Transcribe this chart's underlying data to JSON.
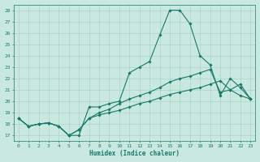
{
  "xlabel": "Humidex (Indice chaleur)",
  "ylabel": "",
  "xlim": [
    -0.5,
    23.5
  ],
  "ylim": [
    16.5,
    28.5
  ],
  "yticks": [
    17,
    18,
    19,
    20,
    21,
    22,
    23,
    24,
    25,
    26,
    27,
    28
  ],
  "xticks": [
    0,
    1,
    2,
    3,
    4,
    5,
    6,
    7,
    8,
    9,
    10,
    11,
    12,
    13,
    14,
    15,
    16,
    17,
    18,
    19,
    20,
    21,
    22,
    23
  ],
  "bg_color": "#c8e8e0",
  "line_color": "#1a7a6a",
  "grid_color": "#aad4ca",
  "series": [
    {
      "x": [
        0,
        1,
        2,
        3,
        4,
        5,
        6,
        7,
        8,
        9,
        10,
        11,
        12,
        13,
        14,
        15,
        16,
        17,
        18,
        19,
        20,
        21,
        22,
        23
      ],
      "y": [
        18.5,
        17.8,
        18.0,
        18.1,
        17.8,
        17.0,
        17.0,
        19.5,
        19.5,
        19.8,
        20.0,
        22.5,
        23.0,
        23.5,
        25.8,
        28.0,
        28.0,
        26.8,
        24.0,
        23.2,
        20.5,
        22.0,
        21.2,
        20.2
      ]
    },
    {
      "x": [
        0,
        1,
        2,
        3,
        4,
        5,
        6,
        7,
        8,
        9,
        10,
        11,
        12,
        13,
        14,
        15,
        16,
        17,
        18,
        19,
        20,
        21,
        22,
        23
      ],
      "y": [
        18.5,
        17.8,
        18.0,
        18.1,
        17.8,
        17.0,
        17.5,
        18.5,
        19.0,
        19.3,
        19.8,
        20.2,
        20.5,
        20.8,
        21.2,
        21.7,
        22.0,
        22.2,
        22.5,
        22.8,
        20.8,
        21.0,
        21.5,
        20.2
      ]
    },
    {
      "x": [
        0,
        1,
        2,
        3,
        4,
        5,
        6,
        7,
        8,
        9,
        10,
        11,
        12,
        13,
        14,
        15,
        16,
        17,
        18,
        19,
        20,
        21,
        22,
        23
      ],
      "y": [
        18.5,
        17.8,
        18.0,
        18.1,
        17.8,
        17.0,
        17.5,
        18.5,
        18.8,
        19.0,
        19.2,
        19.5,
        19.8,
        20.0,
        20.3,
        20.6,
        20.8,
        21.0,
        21.2,
        21.5,
        21.8,
        21.0,
        20.5,
        20.2
      ]
    }
  ]
}
